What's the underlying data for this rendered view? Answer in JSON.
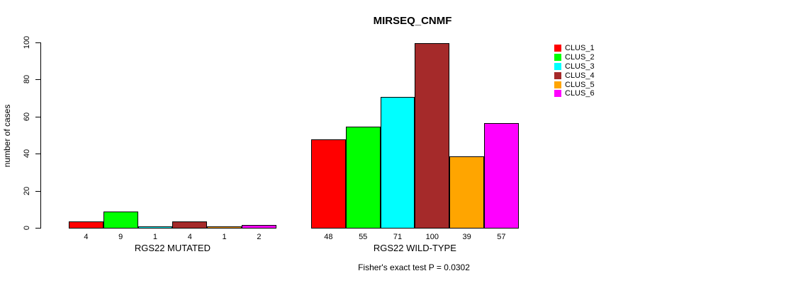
{
  "title": "MIRSEQ_CNMF",
  "caption": "Fisher's exact test P = 0.0302",
  "chart_data": {
    "type": "bar",
    "title": "MIRSEQ_CNMF",
    "xlabel": "",
    "ylabel": "number of cases",
    "ylim": [
      0,
      100
    ],
    "yticks": [
      0,
      20,
      40,
      60,
      80,
      100
    ],
    "grid": false,
    "legend_position": "right",
    "categories": [
      "RGS22 MUTATED",
      "RGS22 WILD-TYPE"
    ],
    "series": [
      {
        "name": "CLUS_1",
        "color": "#ff0000",
        "values": [
          4,
          48
        ]
      },
      {
        "name": "CLUS_2",
        "color": "#00ff00",
        "values": [
          9,
          55
        ]
      },
      {
        "name": "CLUS_3",
        "color": "#00ffff",
        "values": [
          1,
          71
        ]
      },
      {
        "name": "CLUS_4",
        "color": "#a52a2a",
        "values": [
          4,
          100
        ]
      },
      {
        "name": "CLUS_5",
        "color": "#ffa500",
        "values": [
          1,
          39
        ]
      },
      {
        "name": "CLUS_6",
        "color": "#ff00ff",
        "values": [
          2,
          57
        ]
      }
    ],
    "value_labels": [
      [
        4,
        9,
        1,
        4,
        1,
        2
      ],
      [
        48,
        55,
        71,
        100,
        39,
        57
      ]
    ],
    "annotation": "Fisher's exact test P = 0.0302"
  }
}
